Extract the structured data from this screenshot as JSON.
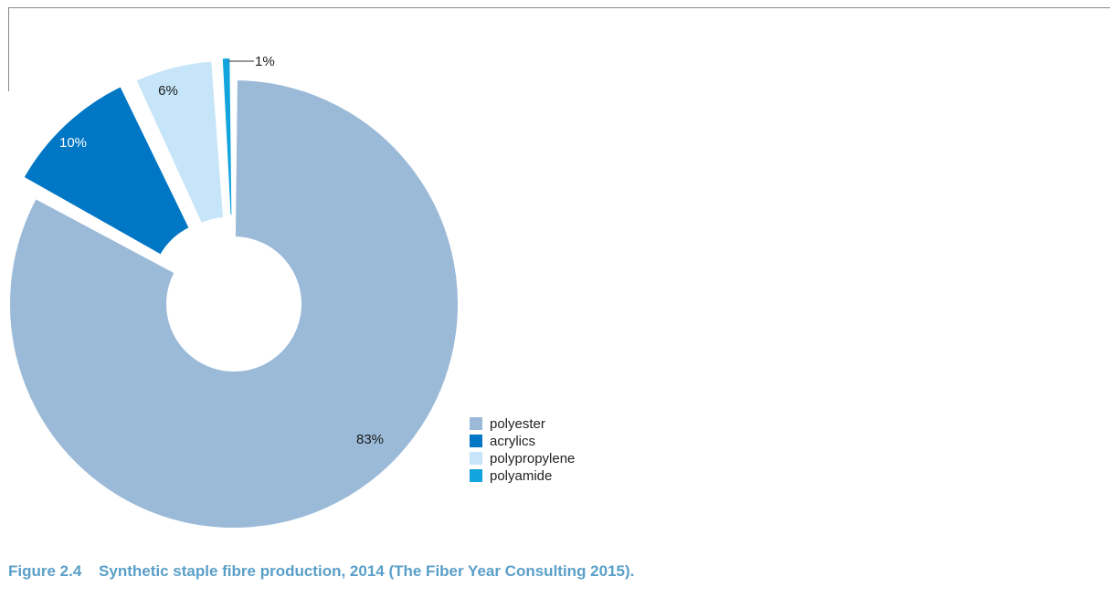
{
  "chart_data": {
    "type": "pie",
    "donut": true,
    "exploded": true,
    "categories": [
      "polyester",
      "acrylics",
      "polypropylene",
      "polyamide"
    ],
    "values": [
      83,
      10,
      6,
      1
    ],
    "labels": [
      "83%",
      "10%",
      "6%",
      "1%"
    ],
    "colors": [
      "#9bbad8",
      "#0077c5",
      "#c6e5f8",
      "#12a4dc"
    ],
    "label_colors": [
      "#1a1a1a",
      "#ffffff",
      "#1a1a1a",
      "#1a1a1a"
    ],
    "legend_position": "right",
    "start": "12 o'clock",
    "direction": "clockwise"
  },
  "legend": {
    "items": [
      {
        "label": "polyester",
        "color": "#9bbad8"
      },
      {
        "label": "acrylics",
        "color": "#0077c5"
      },
      {
        "label": "polypropylene",
        "color": "#c6e5f8"
      },
      {
        "label": "polyamide",
        "color": "#12a4dc"
      }
    ]
  },
  "caption": {
    "number": "Figure 2.4",
    "text": "Synthetic staple fibre production, 2014 (The Fiber Year Consulting 2015)."
  }
}
